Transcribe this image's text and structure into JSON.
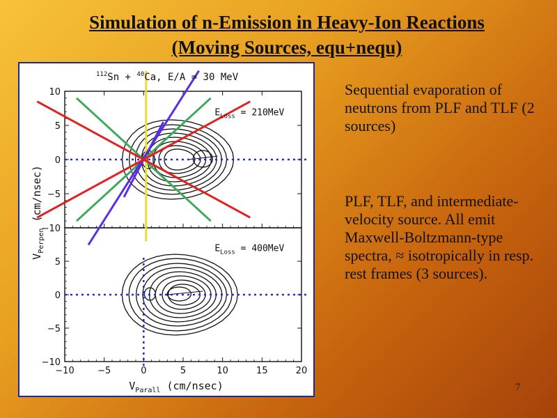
{
  "slide": {
    "title_line1": "Simulation of n-Emission in Heavy-Ion Reactions",
    "title_line2": "(Moving Sources, equ+nequ)",
    "text_block_1": "Sequential evaporation of neutrons from PLF and TLF (2 sources)",
    "text_block_2": "PLF, TLF, and intermediate-velocity source. All emit Maxwell-Boltzmann-type spectra, ≈ isotropically in resp. rest frames (3 sources).",
    "page_number": "7"
  },
  "chart_data": {
    "type": "contour",
    "reaction_label": "112Sn + 40Ca,  E/A = 30 MeV",
    "xlabel": "V_Parall (cm/nsec)",
    "ylabel": "V_Perpen (cm/nsec)",
    "xlim": [
      -10,
      20
    ],
    "x_ticks": [
      -10,
      -5,
      0,
      5,
      10,
      15,
      20
    ],
    "panels": [
      {
        "name": "top",
        "label": "E_Loss = 210MeV",
        "ylim": [
          -10,
          10
        ],
        "y_ticks": [
          -10,
          -5,
          0,
          5,
          10
        ]
      },
      {
        "name": "bottom",
        "label": "E_Loss = 400MeV",
        "ylim": [
          -10,
          10
        ],
        "y_ticks": [
          -10,
          -5,
          0,
          5
        ]
      }
    ],
    "overlay_lines": [
      {
        "color": "#3daa5a",
        "from": [
          -8.5,
          9.0
        ],
        "to": [
          8.5,
          -9.0
        ]
      },
      {
        "color": "#3daa5a",
        "from": [
          -8.5,
          -9.0
        ],
        "to": [
          8.5,
          9.0
        ]
      },
      {
        "color": "#e8e030",
        "from": [
          0.3,
          -12.0
        ],
        "to": [
          0.3,
          13.0
        ]
      },
      {
        "color": "#5a2ee0",
        "from": [
          -2.5,
          -5.5
        ],
        "to": [
          2.5,
          5.5
        ]
      },
      {
        "color": "#5a2ee0",
        "from": [
          -7.0,
          -12.5
        ],
        "to": [
          7.0,
          13.0
        ]
      },
      {
        "color": "#e32020",
        "from": [
          -13.5,
          -8.5
        ],
        "to": [
          13.5,
          8.5
        ]
      },
      {
        "color": "#e32020",
        "from": [
          -13.5,
          8.5
        ],
        "to": [
          13.5,
          -8.5
        ]
      }
    ],
    "colors": {
      "frame": "#1e2a8a",
      "contour": "#111111",
      "guide_dotted": "#1a2fd0"
    }
  }
}
